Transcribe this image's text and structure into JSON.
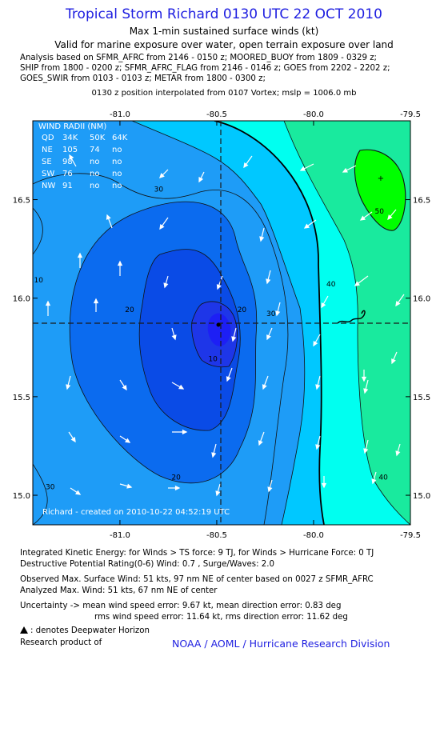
{
  "header": {
    "title": "Tropical Storm Richard 0130 UTC 22 OCT 2010",
    "subtitle1": "Max 1-min sustained surface winds (kt)",
    "subtitle2": "Valid for marine exposure over water, open terrain exposure over land",
    "analysis_lines": [
      "Analysis based on SFMR_AFRC from 2146 - 0150 z; MOORED_BUOY from 1809 - 0329 z;",
      "SHIP from 1800 - 0200 z; SFMR_AFRC_FLAG from 2146 - 0146 z; GOES from 2202 - 2202 z;",
      "GOES_SWIR from 0103 - 0103 z; METAR from 1800 - 0300 z;"
    ],
    "position_line": "0130 z position interpolated from 0107 Vortex; mslp = 1006.0 mb"
  },
  "chart_data": {
    "type": "contour",
    "xlim": [
      -81.45,
      -79.5
    ],
    "ylim": [
      14.85,
      16.9
    ],
    "x_ticks": [
      -81.0,
      -80.5,
      -80.0,
      -79.5
    ],
    "x_tick_labels": [
      "-81.0",
      "-80.5",
      "-80.0",
      "-79.5"
    ],
    "y_ticks": [
      15.0,
      15.5,
      16.0,
      16.5
    ],
    "y_tick_labels": [
      "15.0",
      "15.5",
      "16.0",
      "16.5"
    ],
    "center": {
      "lon": -80.5,
      "lat": 15.85
    },
    "contour_levels": [
      10,
      20,
      30,
      40,
      50
    ],
    "contour_labels": [
      {
        "text": "10",
        "lon": -81.42,
        "lat": 16.08
      },
      {
        "text": "10",
        "lon": -80.52,
        "lat": 15.68
      },
      {
        "text": "20",
        "lon": -80.95,
        "lat": 15.93
      },
      {
        "text": "20",
        "lon": -80.37,
        "lat": 15.93
      },
      {
        "text": "20",
        "lon": -80.71,
        "lat": 15.08
      },
      {
        "text": "30",
        "lon": -80.8,
        "lat": 16.54
      },
      {
        "text": "30",
        "lon": -80.22,
        "lat": 15.91
      },
      {
        "text": "30",
        "lon": -81.36,
        "lat": 15.03
      },
      {
        "text": "40",
        "lon": -79.91,
        "lat": 16.06
      },
      {
        "text": "40",
        "lon": -79.64,
        "lat": 15.08
      },
      {
        "text": "50",
        "lon": -79.66,
        "lat": 16.43
      }
    ],
    "wind_radii": {
      "title": "WIND RADII (NM)",
      "header": [
        "QD",
        "34K",
        "50K",
        "64K"
      ],
      "rows": [
        [
          "NE",
          "105",
          "74",
          "no"
        ],
        [
          "SE",
          "98",
          "no",
          "no"
        ],
        [
          "SW",
          "76",
          "no",
          "no"
        ],
        [
          "NW",
          "91",
          "no",
          "no"
        ]
      ]
    },
    "credit": "Richard - created on 2010-10-22 04:52:19 UTC",
    "colors": {
      "c0": "#1e9cf7",
      "c10": "#0b6bef",
      "c20": "#0a4be6",
      "c30": "#00c8ff",
      "c40": "#00fff0",
      "c50": "#19ea9e",
      "c60": "#00ff00"
    }
  },
  "footer": {
    "ike_line": "Integrated Kinetic Energy:  for Winds > TS force: 9 TJ,  for Winds > Hurricane Force: 0 TJ",
    "dpr_line": "Destructive Potential Rating(0-6)   Wind: 0.7 , Surge/Waves: 2.0",
    "obs_line": "Observed Max. Surface Wind: 51 kts, 97 nm NE of center based on 0027 z SFMR_AFRC",
    "ana_line": "Analyzed Max. Wind: 51 kts, 67 nm NE of center",
    "unc_line1": "Uncertainty -> mean wind speed error: 9.67 kt,   mean direction error: 0.83 deg",
    "unc_line2": "rms wind speed error: 11.64 kt,   rms direction error: 11.62 deg",
    "legend_line": ": denotes Deepwater Horizon",
    "research_line": "Research product of",
    "noaa_line": "NOAA / AOML / Hurricane Research Division"
  }
}
